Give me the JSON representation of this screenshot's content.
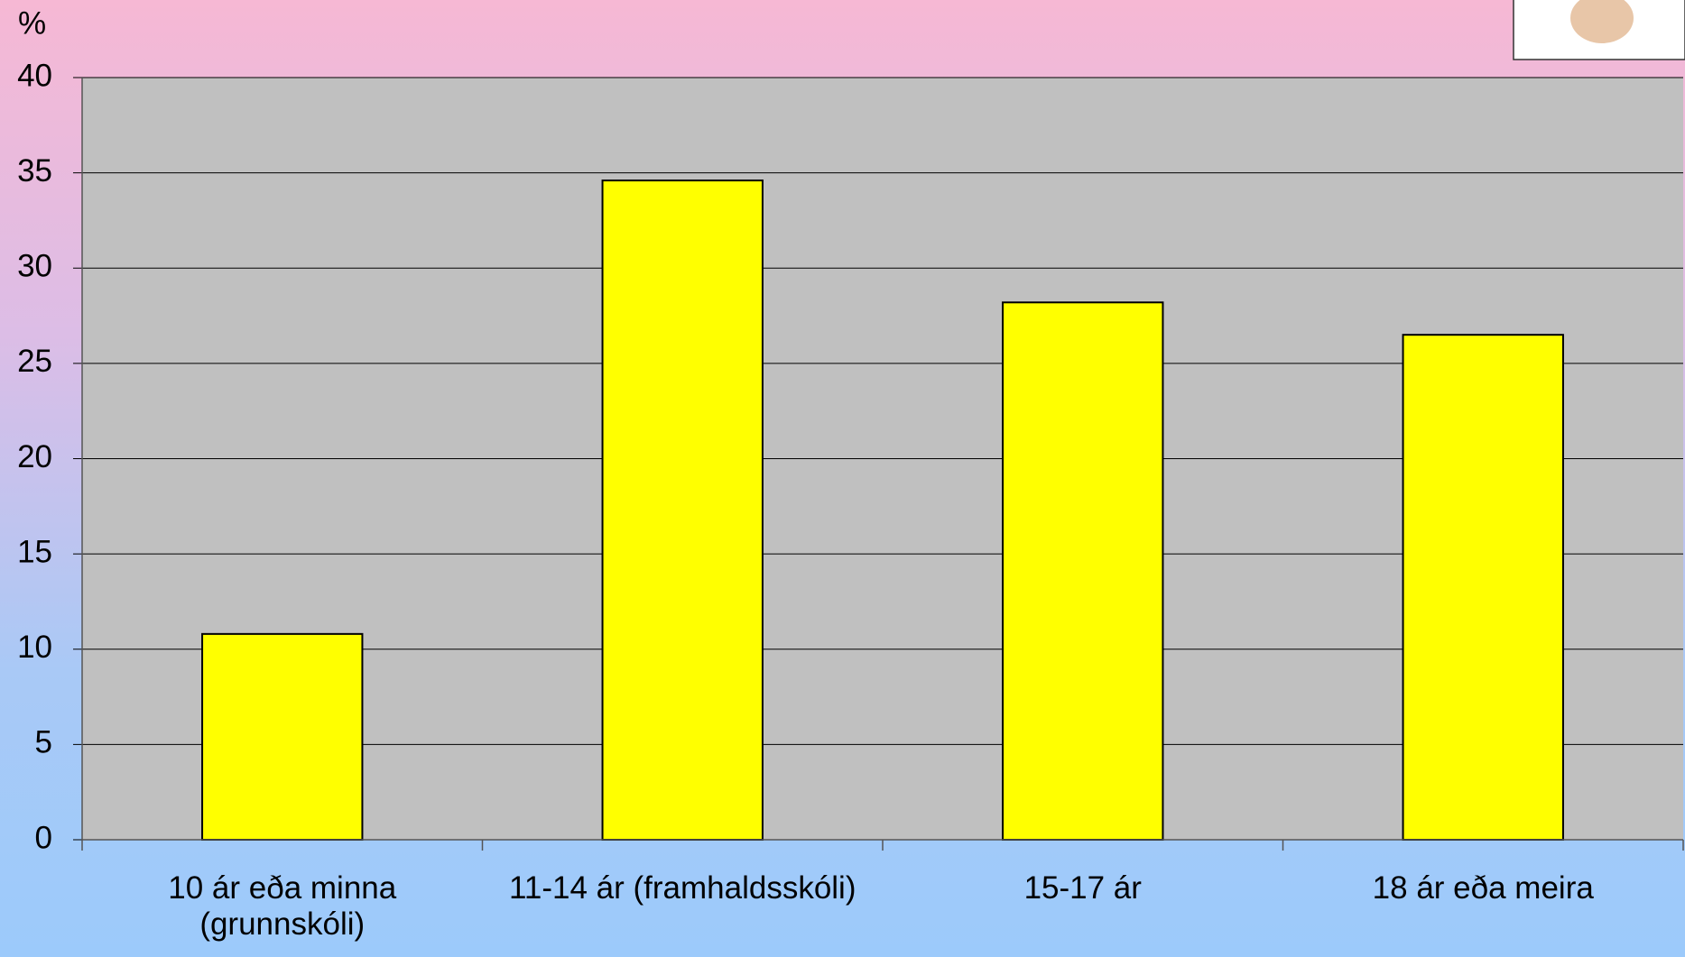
{
  "chart_data": {
    "type": "bar",
    "y_label": "%",
    "categories": [
      "10 ár eða minna (grunnskóli)",
      "11-14 ár (framhaldsskóli)",
      "15-17 ár",
      "18 ár eða meira"
    ],
    "values": [
      10.8,
      34.6,
      28.2,
      26.5
    ],
    "color": "#ffff00",
    "ylim": [
      0,
      40
    ],
    "yticks": [
      0,
      5,
      10,
      15,
      20,
      25,
      30,
      35,
      40
    ],
    "grid": true
  }
}
